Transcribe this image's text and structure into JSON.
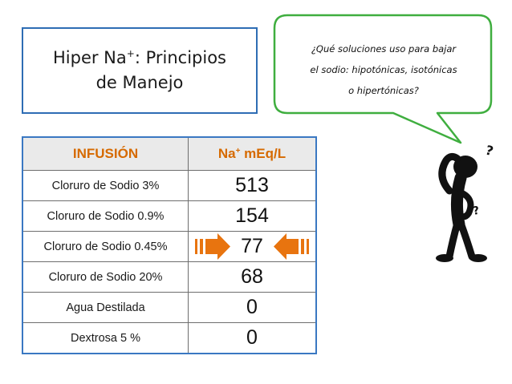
{
  "title": {
    "line1_prefix": "Hiper Na",
    "line1_sup": "+",
    "line1_suffix": ": Principios",
    "line2": "de Manejo"
  },
  "bubble": {
    "lines": [
      "¿Qué soluciones uso para bajar",
      "el sodio: hipotónicas, isotónicas",
      "o hipertónicas?"
    ]
  },
  "table": {
    "header": {
      "infusion": "INFUSIÓN",
      "na_prefix": "Na",
      "na_sup": "+",
      "na_suffix": " mEq/L"
    },
    "rows": [
      {
        "name": "Cloruro de Sodio 3%",
        "value": "513"
      },
      {
        "name": "Cloruro de Sodio 0.9%",
        "value": "154"
      },
      {
        "name": "Cloruro de Sodio 0.45%",
        "value": "77",
        "highlight": true
      },
      {
        "name": "Cloruro de Sodio 20%",
        "value": "68"
      },
      {
        "name": "Agua Destilada",
        "value": "0"
      },
      {
        "name": "Dextrosa 5 %",
        "value": "0"
      }
    ]
  },
  "colors": {
    "header_text": "#d66a00",
    "arrow": "#e8740f",
    "border_blue": "#2e6db4",
    "bubble_border": "#3fae3f"
  },
  "icons": {
    "arrows": "block-arrow-icon",
    "figure": "confused-stick-figure-icon"
  }
}
